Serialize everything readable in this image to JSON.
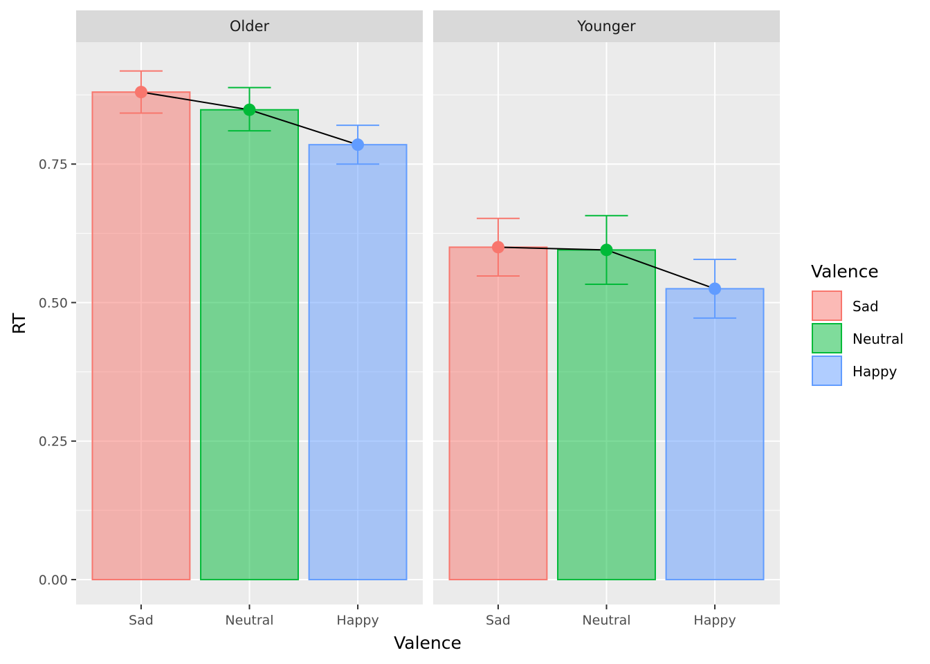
{
  "chart_data": {
    "type": "bar",
    "xlabel": "Valence",
    "ylabel": "RT",
    "ylim": [
      -0.045,
      0.97
    ],
    "yticks": [
      0.0,
      0.25,
      0.5,
      0.75
    ],
    "ytick_labels": [
      "0.00",
      "0.25",
      "0.50",
      "0.75"
    ],
    "categories": [
      "Sad",
      "Neutral",
      "Happy"
    ],
    "facets": [
      {
        "label": "Older",
        "values": [
          0.88,
          0.848,
          0.785
        ],
        "error_lower": [
          0.842,
          0.81,
          0.75
        ],
        "error_upper": [
          0.918,
          0.888,
          0.82
        ]
      },
      {
        "label": "Younger",
        "values": [
          0.6,
          0.595,
          0.525
        ],
        "error_lower": [
          0.548,
          0.533,
          0.472
        ],
        "error_upper": [
          0.652,
          0.657,
          0.578
        ]
      }
    ],
    "legend": {
      "title": "Valence",
      "placement": "right",
      "entries": [
        "Sad",
        "Neutral",
        "Happy"
      ]
    },
    "colors": {
      "Sad": "#F8766D",
      "Neutral": "#00BA38",
      "Happy": "#619CFF"
    },
    "line_color": "#000000",
    "panel_background": "#EBEBEB",
    "strip_background": "#D9D9D9",
    "grid": true
  }
}
